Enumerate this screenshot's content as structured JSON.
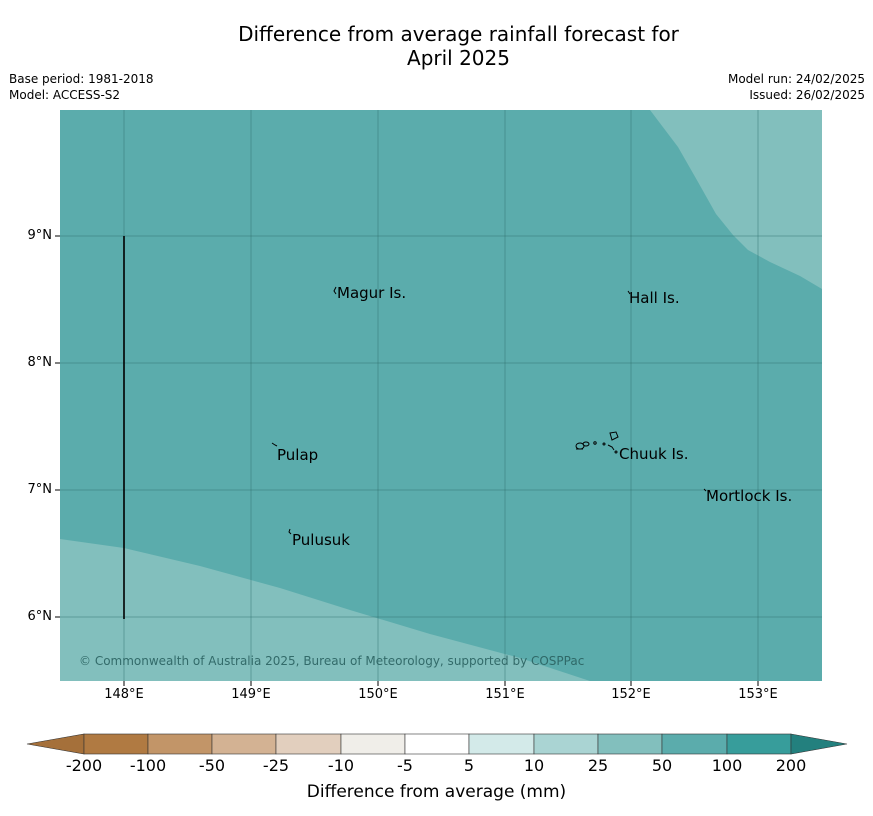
{
  "title_line1": "Difference from average rainfall forecast for",
  "title_line2": "April 2025",
  "base_period": "Base period: 1981-2018",
  "model": "Model: ACCESS-S2",
  "model_run": "Model run: 24/02/2025",
  "issued": "Issued: 26/02/2025",
  "copyright": "© Commonwealth of Australia 2025, Bureau of Meteorology, supported by COSPPac",
  "map": {
    "lat_ticks": [
      "9°N",
      "8°N",
      "7°N",
      "6°N"
    ],
    "lon_ticks": [
      "148°E",
      "149°E",
      "150°E",
      "151°E",
      "152°E",
      "153°E"
    ],
    "grid": true,
    "places": [
      "Magur Is.",
      "Hall Is.",
      "Pulap",
      "Chuuk Is.",
      "Mortlock Is.",
      "Pulusuk"
    ],
    "colors": {
      "map_main": "#5bacac",
      "map_light": "#82bfbd"
    },
    "regions": [
      {
        "category": "50 to 100",
        "color": "#5bacac",
        "area": "most of map"
      },
      {
        "category": "25 to 50",
        "color": "#82bfbd",
        "area": "northeast corner"
      },
      {
        "category": "25 to 50",
        "color": "#82bfbd",
        "area": "southwest corner"
      }
    ]
  },
  "colorbar": {
    "labels": [
      "-200",
      "-100",
      "-50",
      "-25",
      "-10",
      "-5",
      "5",
      "10",
      "25",
      "50",
      "100",
      "200"
    ],
    "colors": [
      "#a5703a",
      "#b07a42",
      "#c29568",
      "#d3b293",
      "#e2cfbe",
      "#f0eee9",
      "#ffffff",
      "#d3eae9",
      "#aad4d3",
      "#82bfbd",
      "#5bacac",
      "#379d9b",
      "#23807e"
    ],
    "title": "Difference from average (mm)"
  }
}
